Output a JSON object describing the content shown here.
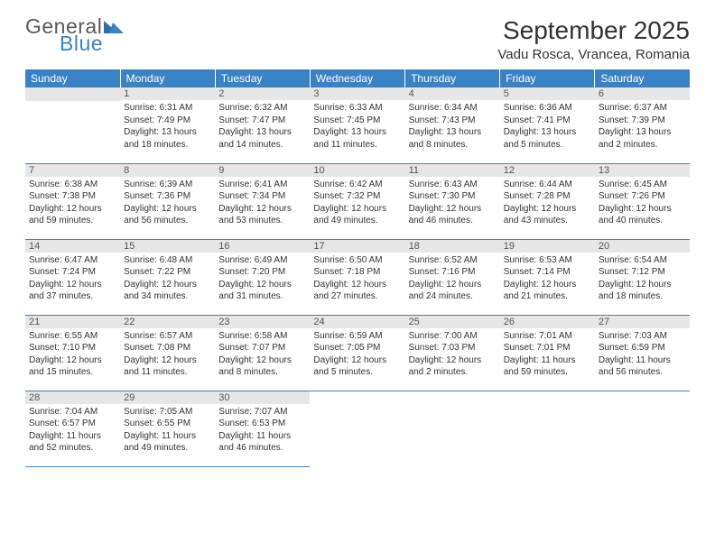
{
  "logo": {
    "text_general": "General",
    "text_blue": "Blue",
    "color_gray": "#5a5a5a",
    "color_blue": "#3b82c4"
  },
  "title": "September 2025",
  "location": "Vadu Rosca, Vrancea, Romania",
  "day_headers": [
    "Sunday",
    "Monday",
    "Tuesday",
    "Wednesday",
    "Thursday",
    "Friday",
    "Saturday"
  ],
  "header_bg": "#3b82c4",
  "header_fg": "#ffffff",
  "daynum_bg": "#e6e6e6",
  "rule_color": "#3b82c4",
  "weeks": [
    [
      null,
      {
        "n": "1",
        "sr": "6:31 AM",
        "ss": "7:49 PM",
        "dl": "13 hours and 18 minutes."
      },
      {
        "n": "2",
        "sr": "6:32 AM",
        "ss": "7:47 PM",
        "dl": "13 hours and 14 minutes."
      },
      {
        "n": "3",
        "sr": "6:33 AM",
        "ss": "7:45 PM",
        "dl": "13 hours and 11 minutes."
      },
      {
        "n": "4",
        "sr": "6:34 AM",
        "ss": "7:43 PM",
        "dl": "13 hours and 8 minutes."
      },
      {
        "n": "5",
        "sr": "6:36 AM",
        "ss": "7:41 PM",
        "dl": "13 hours and 5 minutes."
      },
      {
        "n": "6",
        "sr": "6:37 AM",
        "ss": "7:39 PM",
        "dl": "13 hours and 2 minutes."
      }
    ],
    [
      {
        "n": "7",
        "sr": "6:38 AM",
        "ss": "7:38 PM",
        "dl": "12 hours and 59 minutes."
      },
      {
        "n": "8",
        "sr": "6:39 AM",
        "ss": "7:36 PM",
        "dl": "12 hours and 56 minutes."
      },
      {
        "n": "9",
        "sr": "6:41 AM",
        "ss": "7:34 PM",
        "dl": "12 hours and 53 minutes."
      },
      {
        "n": "10",
        "sr": "6:42 AM",
        "ss": "7:32 PM",
        "dl": "12 hours and 49 minutes."
      },
      {
        "n": "11",
        "sr": "6:43 AM",
        "ss": "7:30 PM",
        "dl": "12 hours and 46 minutes."
      },
      {
        "n": "12",
        "sr": "6:44 AM",
        "ss": "7:28 PM",
        "dl": "12 hours and 43 minutes."
      },
      {
        "n": "13",
        "sr": "6:45 AM",
        "ss": "7:26 PM",
        "dl": "12 hours and 40 minutes."
      }
    ],
    [
      {
        "n": "14",
        "sr": "6:47 AM",
        "ss": "7:24 PM",
        "dl": "12 hours and 37 minutes."
      },
      {
        "n": "15",
        "sr": "6:48 AM",
        "ss": "7:22 PM",
        "dl": "12 hours and 34 minutes."
      },
      {
        "n": "16",
        "sr": "6:49 AM",
        "ss": "7:20 PM",
        "dl": "12 hours and 31 minutes."
      },
      {
        "n": "17",
        "sr": "6:50 AM",
        "ss": "7:18 PM",
        "dl": "12 hours and 27 minutes."
      },
      {
        "n": "18",
        "sr": "6:52 AM",
        "ss": "7:16 PM",
        "dl": "12 hours and 24 minutes."
      },
      {
        "n": "19",
        "sr": "6:53 AM",
        "ss": "7:14 PM",
        "dl": "12 hours and 21 minutes."
      },
      {
        "n": "20",
        "sr": "6:54 AM",
        "ss": "7:12 PM",
        "dl": "12 hours and 18 minutes."
      }
    ],
    [
      {
        "n": "21",
        "sr": "6:55 AM",
        "ss": "7:10 PM",
        "dl": "12 hours and 15 minutes."
      },
      {
        "n": "22",
        "sr": "6:57 AM",
        "ss": "7:08 PM",
        "dl": "12 hours and 11 minutes."
      },
      {
        "n": "23",
        "sr": "6:58 AM",
        "ss": "7:07 PM",
        "dl": "12 hours and 8 minutes."
      },
      {
        "n": "24",
        "sr": "6:59 AM",
        "ss": "7:05 PM",
        "dl": "12 hours and 5 minutes."
      },
      {
        "n": "25",
        "sr": "7:00 AM",
        "ss": "7:03 PM",
        "dl": "12 hours and 2 minutes."
      },
      {
        "n": "26",
        "sr": "7:01 AM",
        "ss": "7:01 PM",
        "dl": "11 hours and 59 minutes."
      },
      {
        "n": "27",
        "sr": "7:03 AM",
        "ss": "6:59 PM",
        "dl": "11 hours and 56 minutes."
      }
    ],
    [
      {
        "n": "28",
        "sr": "7:04 AM",
        "ss": "6:57 PM",
        "dl": "11 hours and 52 minutes."
      },
      {
        "n": "29",
        "sr": "7:05 AM",
        "ss": "6:55 PM",
        "dl": "11 hours and 49 minutes."
      },
      {
        "n": "30",
        "sr": "7:07 AM",
        "ss": "6:53 PM",
        "dl": "11 hours and 46 minutes."
      },
      null,
      null,
      null,
      null
    ]
  ],
  "labels": {
    "sunrise": "Sunrise:",
    "sunset": "Sunset:",
    "daylight": "Daylight:"
  }
}
